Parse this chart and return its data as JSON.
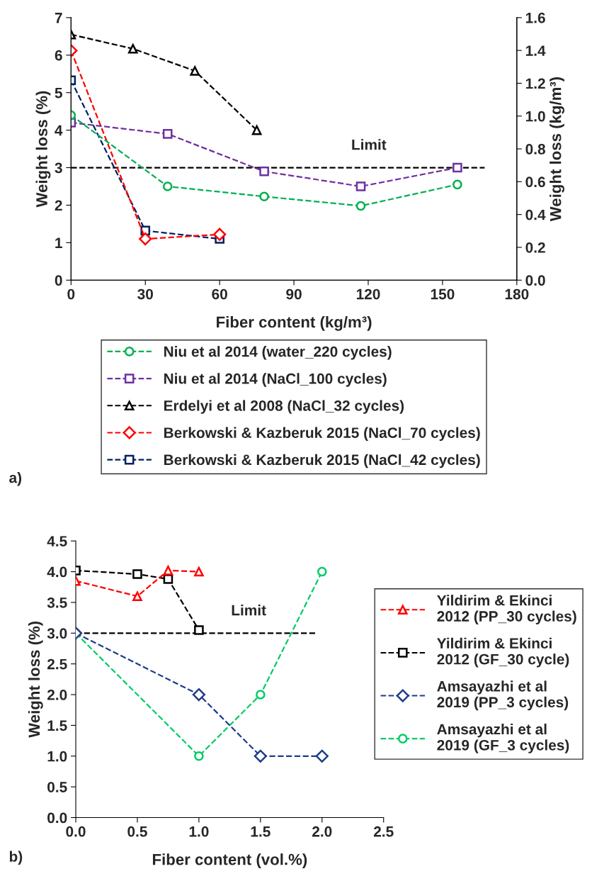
{
  "chart_data": [
    {
      "type": "line",
      "xlabel": "Fiber content (kg/m³)",
      "ylabel": "Weight loss (%)",
      "y2label": "Weight loss (kg/m³)",
      "xlim": [
        0,
        180
      ],
      "xticks": [
        0,
        30,
        60,
        90,
        120,
        150,
        180
      ],
      "ylim": [
        0,
        7
      ],
      "yticks": [
        0,
        1,
        2,
        3,
        4,
        5,
        6,
        7
      ],
      "y2lim": [
        0,
        1.6
      ],
      "y2ticks": [
        {
          "value": 0,
          "label": "0.0"
        },
        0.2,
        0.4,
        0.6,
        0.8,
        {
          "value": 1,
          "label": "1.0"
        },
        1.2,
        1.4,
        1.6
      ],
      "line_style": "dashed",
      "legend": "bottom",
      "grid": false,
      "series": [
        {
          "name": "Niu et al 2014 (water_220 cycles)",
          "color": "#00b050",
          "marker": "circle",
          "x": [
            0,
            39,
            78,
            117,
            156
          ],
          "values": [
            4.4,
            2.5,
            2.23,
            1.98,
            2.55
          ]
        },
        {
          "name": "Niu et al 2014 (NaCl_100 cycles)",
          "color": "#7030a0",
          "marker": "square",
          "x": [
            0,
            39,
            78,
            117,
            156
          ],
          "values": [
            4.2,
            3.9,
            2.9,
            2.5,
            3.0
          ]
        },
        {
          "name": "Erdelyi et al 2008 (NaCl_32 cycles)",
          "color": "#000000",
          "marker": "triangle",
          "x": [
            0,
            25,
            50,
            75
          ],
          "values": [
            6.55,
            6.17,
            5.58,
            4.0
          ]
        },
        {
          "name": "Berkowski & Kazberuk 2015 (NaCl_70 cycles)",
          "color": "#ff0000",
          "marker": "diamond",
          "x": [
            0,
            30,
            60
          ],
          "values": [
            6.12,
            1.1,
            1.22
          ]
        },
        {
          "name": "Berkowski & Kazberuk 2015 (NaCl_42 cycles)",
          "color": "#002060",
          "marker": "square",
          "x": [
            0,
            30,
            60
          ],
          "values": [
            5.33,
            1.32,
            1.1
          ]
        },
        {
          "color": "#000000",
          "marker": "none",
          "x": [
            0,
            167
          ],
          "values": [
            3,
            3
          ]
        }
      ],
      "annotations": [
        "a)",
        "Limit"
      ]
    },
    {
      "type": "line",
      "xlabel": "Fiber content (vol.%)",
      "ylabel": "Weight loss (%)",
      "xlim": [
        0,
        2.5
      ],
      "xticks": [
        {
          "value": 0,
          "label": "0.0"
        },
        0.5,
        {
          "value": 1,
          "label": "1.0"
        },
        1.5,
        {
          "value": 2,
          "label": "2.0"
        },
        2.5
      ],
      "ylim": [
        0,
        4.5
      ],
      "yticks": [
        {
          "value": 0,
          "label": "0.0"
        },
        0.5,
        {
          "value": 1,
          "label": "1.0"
        },
        1.5,
        {
          "value": 2,
          "label": "2.0"
        },
        2.5,
        {
          "value": 3,
          "label": "3.0"
        },
        3.5,
        {
          "value": 4,
          "label": "4.0"
        },
        4.5
      ],
      "line_style": "dashed",
      "legend": "right",
      "grid": false,
      "series": [
        {
          "name": "Yildirim & Ekinci 2012 (PP_30 cycles)",
          "color": "#ff0000",
          "marker": "triangle",
          "x": [
            0,
            0.5,
            0.75,
            1.0
          ],
          "values": [
            3.85,
            3.6,
            4.02,
            4.0
          ]
        },
        {
          "name": "Yildirim & Ekinci 2012 (GF_30 cycle)",
          "color": "#000000",
          "marker": "square",
          "x": [
            0,
            0.5,
            0.75,
            1.0
          ],
          "values": [
            4.02,
            3.96,
            3.88,
            3.05
          ]
        },
        {
          "name": "Amsayazhi et al 2019 (PP_3 cycles)",
          "color": "#1f3c88",
          "marker": "diamond",
          "x": [
            0,
            1,
            1.5,
            2
          ],
          "values": [
            3.0,
            2.0,
            1.0,
            1.0
          ]
        },
        {
          "name": "Amsayazhi et al 2019 (GF_3 cycles)",
          "color": "#00cc66",
          "marker": "circle",
          "x": [
            0,
            1,
            1.5,
            2
          ],
          "values": [
            3.0,
            1.0,
            2.0,
            4.0
          ]
        },
        {
          "color": "#000000",
          "marker": "none",
          "x": [
            0,
            1.95
          ],
          "values": [
            3,
            3
          ]
        }
      ],
      "annotations": [
        "b)",
        "Limit"
      ]
    }
  ]
}
